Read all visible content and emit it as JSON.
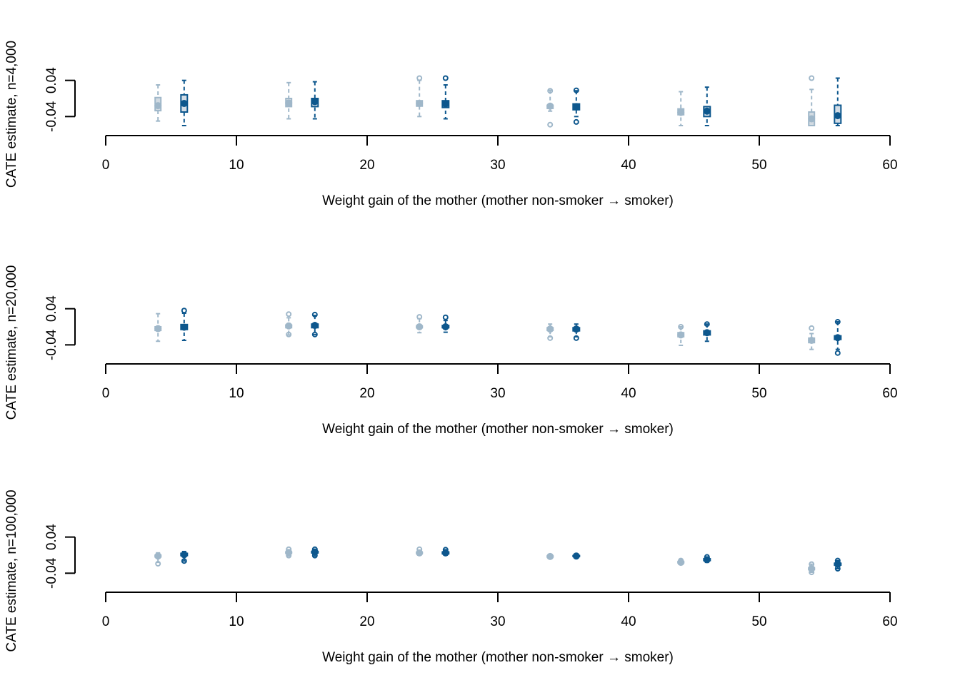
{
  "colors": {
    "light": "#7f9fb8",
    "dark": "#0d578d",
    "box_light_fill": "#c4cfd9",
    "box_dark_fill": "#d3dde6",
    "axis": "#000000"
  },
  "chart_data": [
    {
      "type": "boxplot",
      "ylabel": "CATE estimate, n=4,000",
      "xlabel": "Weight gain of the mother (mother non-smoker → smoker)",
      "xlim": [
        0,
        60
      ],
      "xticks": [
        "0",
        "10",
        "20",
        "30",
        "40",
        "50",
        "60"
      ],
      "yticks": [
        "-0.04",
        "0.04"
      ],
      "ylim": [
        -0.06,
        0.06
      ],
      "series": [
        {
          "x": [
            4,
            14,
            24,
            34,
            44,
            54
          ],
          "boxes": [
            {
              "min": -0.05,
              "q1": -0.027,
              "median": -0.016,
              "q3": 0.002,
              "max": 0.03,
              "out": []
            },
            {
              "min": -0.045,
              "q1": -0.018,
              "median": -0.01,
              "q3": 0.0,
              "max": 0.035,
              "out": []
            },
            {
              "min": -0.04,
              "q1": -0.017,
              "median": -0.011,
              "q3": -0.005,
              "max": 0.04,
              "out": [
                0.045
              ]
            },
            {
              "min": -0.028,
              "q1": -0.022,
              "median": -0.017,
              "q3": -0.015,
              "max": 0.018,
              "out": [
                0.017,
                -0.058
              ]
            },
            {
              "min": -0.06,
              "q1": -0.036,
              "median": -0.031,
              "q3": -0.023,
              "max": 0.015,
              "out": []
            },
            {
              "min": -0.06,
              "q1": -0.06,
              "median": -0.045,
              "q3": -0.03,
              "max": 0.02,
              "out": [
                0.045
              ]
            }
          ]
        },
        {
          "x": [
            6,
            16,
            26,
            36,
            46,
            56
          ],
          "boxes": [
            {
              "min": -0.06,
              "q1": -0.03,
              "median": -0.011,
              "q3": 0.008,
              "max": 0.04,
              "out": []
            },
            {
              "min": -0.045,
              "q1": -0.018,
              "median": -0.007,
              "q3": 0.0,
              "max": 0.037,
              "out": []
            },
            {
              "min": -0.045,
              "q1": -0.02,
              "median": -0.012,
              "q3": -0.005,
              "max": 0.03,
              "out": [
                0.045
              ]
            },
            {
              "min": -0.04,
              "q1": -0.025,
              "median": -0.018,
              "q3": -0.012,
              "max": 0.017,
              "out": [
                0.018,
                -0.052
              ]
            },
            {
              "min": -0.06,
              "q1": -0.04,
              "median": -0.028,
              "q3": -0.018,
              "max": 0.025,
              "out": []
            },
            {
              "min": -0.06,
              "q1": -0.055,
              "median": -0.038,
              "q3": -0.015,
              "max": 0.045,
              "out": []
            }
          ]
        }
      ]
    },
    {
      "type": "boxplot",
      "ylabel": "CATE estimate, n=20,000",
      "xlabel": "Weight gain of the mother (mother non-smoker → smoker)",
      "xlim": [
        0,
        60
      ],
      "xticks": [
        "0",
        "10",
        "20",
        "30",
        "40",
        "50",
        "60"
      ],
      "yticks": [
        "-0.04",
        "0.04"
      ],
      "ylim": [
        -0.06,
        0.06
      ],
      "series": [
        {
          "x": [
            4,
            14,
            24,
            34,
            44,
            54
          ],
          "boxes": [
            {
              "min": -0.032,
              "q1": -0.008,
              "median": -0.004,
              "q3": 0.0,
              "max": 0.029,
              "out": []
            },
            {
              "min": -0.018,
              "q1": -0.002,
              "median": 0.002,
              "q3": 0.004,
              "max": 0.02,
              "out": [
                0.028,
                -0.017
              ]
            },
            {
              "min": -0.013,
              "q1": -0.002,
              "median": 0.0,
              "q3": 0.002,
              "max": 0.018,
              "out": [
                0.022
              ]
            },
            {
              "min": -0.022,
              "q1": -0.008,
              "median": -0.005,
              "q3": -0.002,
              "max": 0.006,
              "out": [
                -0.025
              ]
            },
            {
              "min": -0.041,
              "q1": -0.022,
              "median": -0.018,
              "q3": -0.013,
              "max": 0.0,
              "out": [
                0.0
              ]
            },
            {
              "min": -0.05,
              "q1": -0.035,
              "median": -0.03,
              "q3": -0.025,
              "max": -0.015,
              "out": [
                -0.003
              ]
            }
          ]
        },
        {
          "x": [
            6,
            16,
            26,
            36,
            46,
            56
          ],
          "boxes": [
            {
              "min": -0.03,
              "q1": -0.006,
              "median": -0.001,
              "q3": 0.005,
              "max": 0.03,
              "out": [
                0.036
              ]
            },
            {
              "min": -0.017,
              "q1": -0.002,
              "median": 0.003,
              "q3": 0.006,
              "max": 0.025,
              "out": [
                0.027,
                -0.017
              ]
            },
            {
              "min": -0.012,
              "q1": -0.002,
              "median": 0.0,
              "q3": 0.003,
              "max": 0.014,
              "out": [
                0.021
              ]
            },
            {
              "min": -0.022,
              "q1": -0.009,
              "median": -0.005,
              "q3": -0.002,
              "max": 0.006,
              "out": [
                -0.025
              ]
            },
            {
              "min": -0.032,
              "q1": -0.018,
              "median": -0.013,
              "q3": -0.009,
              "max": 0.006,
              "out": [
                0.006
              ]
            },
            {
              "min": -0.05,
              "q1": -0.028,
              "median": -0.024,
              "q3": -0.02,
              "max": 0.011,
              "out": [
                0.011,
                -0.058
              ]
            }
          ]
        }
      ]
    },
    {
      "type": "boxplot",
      "ylabel": "CATE estimate, n=100,000",
      "xlabel": "Weight gain of the mother (mother non-smoker → smoker)",
      "xlim": [
        0,
        60
      ],
      "xticks": [
        "0",
        "10",
        "20",
        "30",
        "40",
        "50",
        "60"
      ],
      "yticks": [
        "-0.04",
        "0.04"
      ],
      "ylim": [
        -0.06,
        0.06
      ],
      "series": [
        {
          "x": [
            4,
            14,
            24,
            34,
            44,
            54
          ],
          "boxes": [
            {
              "min": -0.016,
              "q1": -0.004,
              "median": -0.002,
              "q3": 0.0,
              "max": 0.005,
              "out": [
                -0.019
              ]
            },
            {
              "min": -0.002,
              "q1": 0.004,
              "median": 0.006,
              "q3": 0.007,
              "max": 0.012,
              "out": [
                0.013,
                -0.001
              ]
            },
            {
              "min": 0.0,
              "q1": 0.004,
              "median": 0.005,
              "q3": 0.006,
              "max": 0.011,
              "out": [
                0.013
              ]
            },
            {
              "min": -0.005,
              "q1": -0.004,
              "median": -0.003,
              "q3": -0.002,
              "max": 0.0,
              "out": []
            },
            {
              "min": -0.02,
              "q1": -0.017,
              "median": -0.016,
              "q3": -0.014,
              "max": -0.012,
              "out": [
                -0.012
              ]
            },
            {
              "min": -0.038,
              "q1": -0.032,
              "median": -0.03,
              "q3": -0.028,
              "max": -0.02,
              "out": [
                -0.02,
                -0.038
              ]
            }
          ]
        },
        {
          "x": [
            6,
            16,
            26,
            36,
            46,
            56
          ],
          "boxes": [
            {
              "min": -0.013,
              "q1": -0.001,
              "median": 0.001,
              "q3": 0.004,
              "max": 0.008,
              "out": [
                -0.013
              ]
            },
            {
              "min": -0.002,
              "q1": 0.005,
              "median": 0.007,
              "q3": 0.008,
              "max": 0.013,
              "out": [
                0.013,
                -0.001
              ]
            },
            {
              "min": 0.0,
              "q1": 0.003,
              "median": 0.005,
              "q3": 0.007,
              "max": 0.012,
              "out": [
                0.012
              ]
            },
            {
              "min": -0.005,
              "q1": -0.003,
              "median": -0.002,
              "q3": -0.001,
              "max": 0.0,
              "out": []
            },
            {
              "min": -0.016,
              "q1": -0.012,
              "median": -0.01,
              "q3": -0.008,
              "max": -0.004,
              "out": [
                -0.004
              ]
            },
            {
              "min": -0.03,
              "q1": -0.022,
              "median": -0.02,
              "q3": -0.018,
              "max": -0.012,
              "out": [
                -0.012,
                -0.03
              ]
            }
          ]
        }
      ]
    }
  ]
}
